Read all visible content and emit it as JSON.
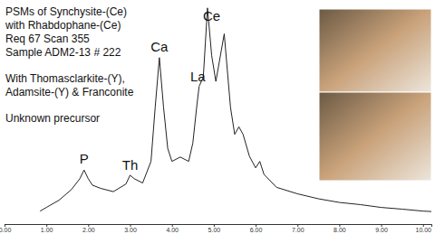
{
  "chart_data": {
    "type": "line",
    "color": "#222222",
    "notes": [
      [
        "PSMs of Synchysite-(Ce)",
        "with Rhabdophane-(Ce)",
        "Req 67 Scan 355",
        "Sample ADM2-13 # 222"
      ],
      [
        "With Thomasclarkite-(Y),",
        "Adamsite-(Y) & Franconite"
      ],
      [
        "Unknown precursor"
      ]
    ],
    "annotations": [
      {
        "text": "P",
        "x": 1.9,
        "y": 28
      },
      {
        "text": "Th",
        "x": 3.0,
        "y": 25
      },
      {
        "text": "Ca",
        "x": 3.7,
        "y": 80
      },
      {
        "text": "La",
        "x": 4.62,
        "y": 66
      },
      {
        "text": "Ce",
        "x": 4.95,
        "y": 94
      }
    ],
    "x": [
      0.85,
      1.0,
      1.3,
      1.6,
      1.8,
      1.9,
      2.0,
      2.1,
      2.3,
      2.6,
      2.9,
      3.0,
      3.1,
      3.3,
      3.5,
      3.6,
      3.7,
      3.8,
      3.9,
      4.0,
      4.2,
      4.4,
      4.5,
      4.6,
      4.65,
      4.75,
      4.85,
      4.95,
      5.05,
      5.25,
      5.4,
      5.5,
      5.6,
      5.7,
      5.85,
      6.0,
      6.1,
      6.2,
      6.5,
      7.0,
      7.5,
      8.0,
      8.5,
      9.0,
      9.5,
      10.0,
      10.2
    ],
    "values": [
      6,
      7.7,
      11,
      16,
      21,
      25,
      21,
      18,
      16.5,
      15,
      18.5,
      22.6,
      21,
      19,
      29,
      54,
      77,
      54,
      35,
      29,
      31,
      29,
      37.5,
      55.6,
      63.7,
      68,
      100,
      78,
      66,
      88,
      54,
      41.5,
      45,
      41.5,
      31.5,
      26,
      29,
      23,
      17,
      14,
      11.7,
      10,
      9,
      7.7,
      6.9,
      6,
      5.8
    ],
    "xlim": [
      0,
      10.2
    ],
    "ylim": [
      0,
      102
    ],
    "xticks": [
      {
        "value": 0,
        "label": "0.00"
      },
      {
        "value": 1,
        "label": "1.00"
      },
      {
        "value": 2,
        "label": "2.00"
      },
      {
        "value": 3,
        "label": "3.00"
      },
      {
        "value": 4,
        "label": "4.00"
      },
      {
        "value": 5,
        "label": "5.00"
      },
      {
        "value": 6,
        "label": "6.00"
      },
      {
        "value": 7,
        "label": "7.00"
      },
      {
        "value": 8,
        "label": "8.00"
      },
      {
        "value": 9,
        "label": "9.00"
      },
      {
        "value": 10,
        "label": "10.00"
      }
    ],
    "tick_labels": "x",
    "grid": false
  }
}
